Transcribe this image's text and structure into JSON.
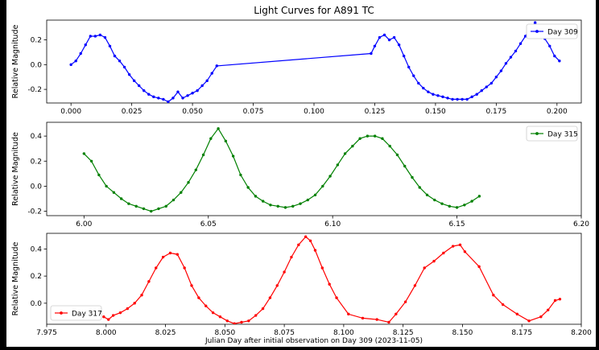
{
  "figure": {
    "title": "Light Curves for A891 TC",
    "xlabel_bottom": "Julian Day after initial observation on Day 309 (2023-11-05)"
  },
  "chart_data": [
    {
      "type": "line",
      "name": "Day 309",
      "color": "#0000ff",
      "legend_loc": "top-right",
      "ylabel": "Relative Magnitude",
      "y_inverted": true,
      "xlim": [
        -0.01,
        0.21
      ],
      "ylim": [
        0.36,
        -0.31
      ],
      "xticks": [
        "0.000",
        "0.025",
        "0.050",
        "0.075",
        "0.100",
        "0.125",
        "0.150",
        "0.175",
        "0.200"
      ],
      "yticks": [
        "-0.2",
        "0.0",
        "0.2"
      ],
      "x": [
        0.0,
        0.002,
        0.004,
        0.006,
        0.008,
        0.01,
        0.012,
        0.014,
        0.016,
        0.018,
        0.02,
        0.022,
        0.024,
        0.026,
        0.028,
        0.03,
        0.032,
        0.034,
        0.036,
        0.038,
        0.04,
        0.042,
        0.044,
        0.046,
        0.048,
        0.05,
        0.052,
        0.054,
        0.056,
        0.058,
        0.06,
        0.1235,
        0.125,
        0.127,
        0.129,
        0.131,
        0.133,
        0.135,
        0.137,
        0.139,
        0.141,
        0.143,
        0.145,
        0.147,
        0.149,
        0.151,
        0.153,
        0.155,
        0.157,
        0.159,
        0.161,
        0.163,
        0.165,
        0.167,
        0.169,
        0.171,
        0.173,
        0.175,
        0.177,
        0.179,
        0.181,
        0.183,
        0.185,
        0.187,
        0.189,
        0.191,
        0.193,
        0.195,
        0.197,
        0.199,
        0.201
      ],
      "y": [
        0.0,
        0.03,
        0.09,
        0.16,
        0.23,
        0.23,
        0.24,
        0.22,
        0.15,
        0.07,
        0.03,
        -0.02,
        -0.08,
        -0.13,
        -0.17,
        -0.21,
        -0.24,
        -0.26,
        -0.27,
        -0.28,
        -0.3,
        -0.27,
        -0.22,
        -0.27,
        -0.25,
        -0.23,
        -0.21,
        -0.17,
        -0.13,
        -0.07,
        -0.01,
        0.09,
        0.15,
        0.22,
        0.24,
        0.2,
        0.22,
        0.16,
        0.07,
        -0.02,
        -0.09,
        -0.15,
        -0.19,
        -0.22,
        -0.24,
        -0.25,
        -0.26,
        -0.27,
        -0.28,
        -0.28,
        -0.28,
        -0.28,
        -0.26,
        -0.24,
        -0.21,
        -0.18,
        -0.15,
        -0.1,
        -0.05,
        0.01,
        0.06,
        0.11,
        0.17,
        0.23,
        0.29,
        0.34,
        0.28,
        0.21,
        0.15,
        0.07,
        0.03
      ]
    },
    {
      "type": "line",
      "name": "Day 315",
      "color": "#008000",
      "legend_loc": "top-right",
      "ylabel": "Relative Magnitude",
      "y_inverted": true,
      "xlim": [
        5.985,
        6.2
      ],
      "ylim": [
        0.51,
        -0.235
      ],
      "xticks": [
        "6.00",
        "6.05",
        "6.10",
        "6.15",
        "6.20"
      ],
      "yticks": [
        "-0.2",
        "0.0",
        "0.2",
        "0.4"
      ],
      "x": [
        6.0,
        6.003,
        6.006,
        6.009,
        6.012,
        6.015,
        6.018,
        6.021,
        6.024,
        6.027,
        6.03,
        6.033,
        6.036,
        6.039,
        6.042,
        6.045,
        6.048,
        6.051,
        6.054,
        6.057,
        6.06,
        6.063,
        6.066,
        6.069,
        6.072,
        6.075,
        6.078,
        6.081,
        6.084,
        6.087,
        6.09,
        6.093,
        6.096,
        6.099,
        6.102,
        6.105,
        6.108,
        6.111,
        6.114,
        6.117,
        6.12,
        6.123,
        6.126,
        6.129,
        6.132,
        6.135,
        6.138,
        6.141,
        6.144,
        6.147,
        6.15,
        6.153,
        6.156,
        6.159
      ],
      "y": [
        0.26,
        0.2,
        0.09,
        0.0,
        -0.05,
        -0.1,
        -0.14,
        -0.16,
        -0.18,
        -0.2,
        -0.18,
        -0.16,
        -0.11,
        -0.05,
        0.03,
        0.13,
        0.25,
        0.38,
        0.46,
        0.36,
        0.24,
        0.09,
        -0.01,
        -0.08,
        -0.12,
        -0.15,
        -0.16,
        -0.17,
        -0.16,
        -0.14,
        -0.11,
        -0.07,
        0.0,
        0.08,
        0.17,
        0.26,
        0.32,
        0.38,
        0.4,
        0.4,
        0.38,
        0.32,
        0.25,
        0.16,
        0.07,
        -0.01,
        -0.07,
        -0.11,
        -0.14,
        -0.16,
        -0.17,
        -0.15,
        -0.12,
        -0.08
      ]
    },
    {
      "type": "line",
      "name": "Day 317",
      "color": "#ff0000",
      "legend_loc": "bottom-left",
      "ylabel": "Relative Magnitude",
      "y_inverted": true,
      "xlim": [
        7.975,
        8.2
      ],
      "ylim": [
        0.515,
        -0.155
      ],
      "xticks": [
        "7.975",
        "8.000",
        "8.025",
        "8.050",
        "8.075",
        "8.100",
        "8.125",
        "8.150",
        "8.175",
        "8.200"
      ],
      "yticks": [
        "0.0",
        "0.2",
        "0.4"
      ],
      "x": [
        7.999,
        8.001,
        8.003,
        8.006,
        8.009,
        8.012,
        8.015,
        8.018,
        8.021,
        8.024,
        8.027,
        8.03,
        8.033,
        8.036,
        8.039,
        8.042,
        8.045,
        8.048,
        8.051,
        8.054,
        8.057,
        8.06,
        8.063,
        8.066,
        8.069,
        8.072,
        8.075,
        8.078,
        8.081,
        8.084,
        8.086,
        8.088,
        8.091,
        8.094,
        8.097,
        8.102,
        8.108,
        8.114,
        8.119,
        8.122,
        8.126,
        8.13,
        8.134,
        8.138,
        8.142,
        8.146,
        8.149,
        8.151,
        8.157,
        8.163,
        8.167,
        8.173,
        8.178,
        8.183,
        8.186,
        8.189,
        8.191
      ],
      "y": [
        -0.1,
        -0.12,
        -0.09,
        -0.07,
        -0.04,
        0.0,
        0.06,
        0.16,
        0.26,
        0.34,
        0.37,
        0.36,
        0.26,
        0.13,
        0.04,
        -0.02,
        -0.07,
        -0.1,
        -0.13,
        -0.15,
        -0.14,
        -0.13,
        -0.09,
        -0.04,
        0.04,
        0.13,
        0.23,
        0.34,
        0.43,
        0.49,
        0.46,
        0.39,
        0.26,
        0.14,
        0.04,
        -0.08,
        -0.11,
        -0.12,
        -0.14,
        -0.08,
        0.01,
        0.13,
        0.26,
        0.31,
        0.37,
        0.42,
        0.43,
        0.38,
        0.27,
        0.06,
        -0.01,
        -0.08,
        -0.13,
        -0.1,
        -0.05,
        0.02,
        0.03
      ]
    }
  ]
}
